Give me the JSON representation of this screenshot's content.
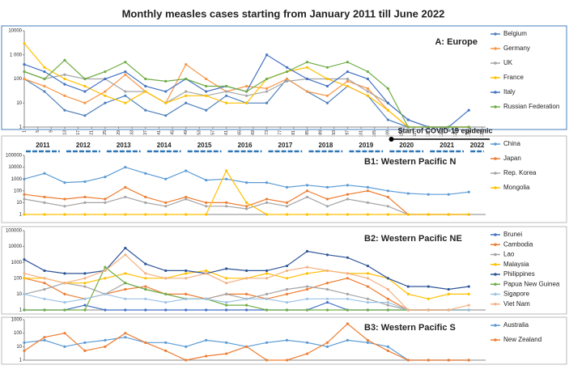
{
  "title": "Monthly measles cases starting from January 2011 till June 2022",
  "timeline": {
    "years": [
      "2011",
      "2012",
      "2013",
      "2014",
      "2015",
      "2016",
      "2017",
      "2018",
      "2019",
      "2020",
      "2021",
      "2022"
    ],
    "annotation": "Start of COVID-19 epidemic"
  },
  "chart_data": [
    {
      "type": "line",
      "title": "A: Europe",
      "log_scale": true,
      "legend": "right",
      "x": [
        1,
        7,
        13,
        19,
        25,
        31,
        37,
        43,
        49,
        55,
        61,
        67,
        73,
        79,
        85,
        91,
        97,
        103,
        109,
        115,
        121,
        127,
        133
      ],
      "xlim": [
        1,
        138
      ],
      "xticks": [
        1,
        5,
        9,
        13,
        17,
        21,
        25,
        29,
        33,
        37,
        41,
        45,
        49,
        53,
        57,
        61,
        65,
        69,
        73,
        77,
        81,
        85,
        89,
        93,
        97,
        101,
        105,
        109,
        113,
        117,
        121,
        125,
        129,
        133,
        137
      ],
      "ylim": [
        1,
        10000
      ],
      "yticks": [
        1,
        10,
        100,
        {
          "value": 1000,
          "label": "1 000"
        },
        10000
      ],
      "series": [
        {
          "name": "Belgium",
          "color": "#4f81bd",
          "values": [
            100,
            30,
            5,
            3,
            10,
            20,
            5,
            3,
            10,
            5,
            20,
            10,
            10,
            100,
            30,
            10,
            50,
            20,
            2,
            1,
            1,
            1,
            1
          ]
        },
        {
          "name": "Germany",
          "color": "#f79646",
          "values": [
            100,
            50,
            20,
            10,
            30,
            150,
            30,
            10,
            400,
            100,
            30,
            50,
            40,
            100,
            30,
            20,
            80,
            40,
            5,
            1,
            1,
            1,
            1
          ]
        },
        {
          "name": "UK",
          "color": "#a5a5a5",
          "values": [
            200,
            100,
            150,
            100,
            100,
            30,
            30,
            10,
            30,
            20,
            30,
            20,
            30,
            80,
            100,
            100,
            100,
            30,
            10,
            2,
            1,
            1,
            1
          ]
        },
        {
          "name": "France",
          "color": "#ffc000",
          "values": [
            3000,
            300,
            100,
            50,
            20,
            10,
            30,
            10,
            20,
            20,
            10,
            10,
            100,
            200,
            300,
            100,
            50,
            20,
            5,
            1,
            1,
            1,
            1
          ]
        },
        {
          "name": "Italy",
          "color": "#4472c4",
          "values": [
            400,
            200,
            60,
            30,
            100,
            200,
            50,
            30,
            100,
            30,
            50,
            30,
            1000,
            300,
            100,
            50,
            200,
            100,
            10,
            2,
            1,
            1,
            5
          ]
        },
        {
          "name": "Russian Federation",
          "color": "#70ad47",
          "values": [
            200,
            100,
            600,
            100,
            200,
            500,
            100,
            80,
            100,
            50,
            50,
            30,
            100,
            200,
            500,
            300,
            500,
            200,
            40,
            1,
            1,
            1,
            1
          ]
        }
      ]
    },
    {
      "type": "line",
      "title": "B1: Western Pacific  N",
      "log_scale": true,
      "legend": "right",
      "x": [
        1,
        7,
        13,
        19,
        25,
        31,
        37,
        43,
        49,
        55,
        61,
        67,
        73,
        79,
        85,
        91,
        97,
        103,
        109,
        115,
        121,
        127,
        133
      ],
      "xlim": [
        1,
        138
      ],
      "ylim": [
        1,
        100000
      ],
      "yticks": [
        1,
        10,
        100,
        1000,
        10000,
        100000
      ],
      "series": [
        {
          "name": "China",
          "color": "#5b9bd5",
          "values": [
            1000,
            3000,
            500,
            600,
            1500,
            10000,
            3000,
            1000,
            5000,
            800,
            1000,
            500,
            500,
            200,
            300,
            200,
            300,
            200,
            100,
            60,
            50,
            50,
            80
          ]
        },
        {
          "name": "Japan",
          "color": "#ed7d31",
          "values": [
            50,
            30,
            20,
            30,
            20,
            200,
            30,
            10,
            30,
            10,
            10,
            5,
            20,
            10,
            100,
            20,
            50,
            100,
            30,
            1,
            1,
            1,
            1
          ]
        },
        {
          "name": "Rep. Korea",
          "color": "#a5a5a5",
          "values": [
            20,
            10,
            5,
            10,
            10,
            30,
            10,
            5,
            20,
            5,
            5,
            3,
            10,
            5,
            30,
            5,
            20,
            10,
            5,
            1,
            1,
            1,
            1
          ]
        },
        {
          "name": "Mongolia",
          "color": "#ffc000",
          "values": [
            1,
            1,
            1,
            1,
            1,
            1,
            1,
            1,
            1,
            1,
            5000,
            10,
            1,
            1,
            1,
            1,
            1,
            1,
            1,
            1,
            1,
            1,
            1
          ]
        }
      ]
    },
    {
      "type": "line",
      "title": "B2: Western Pacific NE",
      "log_scale": true,
      "legend": "right",
      "x": [
        1,
        7,
        13,
        19,
        25,
        31,
        37,
        43,
        49,
        55,
        61,
        67,
        73,
        79,
        85,
        91,
        97,
        103,
        109,
        115,
        121,
        127,
        133
      ],
      "xlim": [
        1,
        138
      ],
      "ylim": [
        1,
        100000
      ],
      "yticks": [
        1,
        10,
        100,
        1000,
        10000,
        100000
      ],
      "series": [
        {
          "name": "Brunei",
          "color": "#4472c4",
          "values": [
            1,
            1,
            1,
            2,
            1,
            1,
            1,
            1,
            1,
            1,
            1,
            1,
            1,
            1,
            1,
            3,
            1,
            1,
            1,
            1,
            1,
            1,
            1
          ]
        },
        {
          "name": "Cambodia",
          "color": "#ed7d31",
          "values": [
            100,
            50,
            10,
            5,
            10,
            20,
            30,
            10,
            10,
            5,
            10,
            10,
            5,
            10,
            20,
            50,
            100,
            30,
            5,
            1,
            1,
            1,
            1
          ]
        },
        {
          "name": "Lao",
          "color": "#a5a5a5",
          "values": [
            10,
            20,
            50,
            30,
            10,
            50,
            20,
            10,
            5,
            5,
            10,
            5,
            10,
            20,
            30,
            20,
            10,
            5,
            2,
            1,
            1,
            1,
            1
          ]
        },
        {
          "name": "Malaysia",
          "color": "#ffc000",
          "values": [
            100,
            100,
            50,
            50,
            100,
            200,
            100,
            100,
            200,
            300,
            100,
            100,
            200,
            100,
            200,
            300,
            200,
            200,
            100,
            10,
            5,
            10,
            10
          ]
        },
        {
          "name": "Philippines",
          "color": "#2f5597",
          "values": [
            1500,
            300,
            200,
            200,
            300,
            8000,
            800,
            300,
            300,
            200,
            400,
            300,
            300,
            600,
            5000,
            3000,
            2000,
            600,
            100,
            30,
            30,
            20,
            30
          ]
        },
        {
          "name": "Papua New Guinea",
          "color": "#70ad47",
          "values": [
            1,
            1,
            1,
            1,
            500,
            50,
            20,
            10,
            5,
            5,
            2,
            2,
            1,
            1,
            1,
            1,
            1,
            1,
            1,
            1,
            1,
            1,
            1
          ]
        },
        {
          "name": "Sigapore",
          "color": "#9dc3e6",
          "values": [
            10,
            5,
            3,
            5,
            10,
            5,
            5,
            3,
            5,
            5,
            3,
            5,
            5,
            3,
            5,
            5,
            5,
            3,
            3,
            1,
            1,
            1,
            1
          ]
        },
        {
          "name": "Viet Nam",
          "color": "#f4b183",
          "values": [
            200,
            100,
            50,
            100,
            300,
            3000,
            200,
            100,
            100,
            200,
            50,
            100,
            100,
            300,
            500,
            300,
            200,
            100,
            20,
            1,
            1,
            1,
            2
          ]
        }
      ]
    },
    {
      "type": "line",
      "title": "B3: Western Pacific S",
      "log_scale": true,
      "legend": "right",
      "x": [
        1,
        7,
        13,
        19,
        25,
        31,
        37,
        43,
        49,
        55,
        61,
        67,
        73,
        79,
        85,
        91,
        97,
        103,
        109,
        115,
        121,
        127,
        133
      ],
      "xlim": [
        1,
        138
      ],
      "ylim": [
        1,
        1000
      ],
      "yticks": [
        1,
        10,
        100,
        1000
      ],
      "series": [
        {
          "name": "Australia",
          "color": "#5b9bd5",
          "values": [
            20,
            30,
            10,
            20,
            30,
            50,
            20,
            20,
            10,
            30,
            20,
            10,
            20,
            30,
            20,
            10,
            30,
            20,
            10,
            1,
            1,
            1,
            1
          ]
        },
        {
          "name": "New Zealand",
          "color": "#ed7d31",
          "values": [
            5,
            50,
            100,
            5,
            10,
            100,
            20,
            5,
            1,
            2,
            3,
            10,
            1,
            1,
            3,
            20,
            500,
            30,
            5,
            1,
            1,
            1,
            1
          ]
        }
      ]
    }
  ]
}
